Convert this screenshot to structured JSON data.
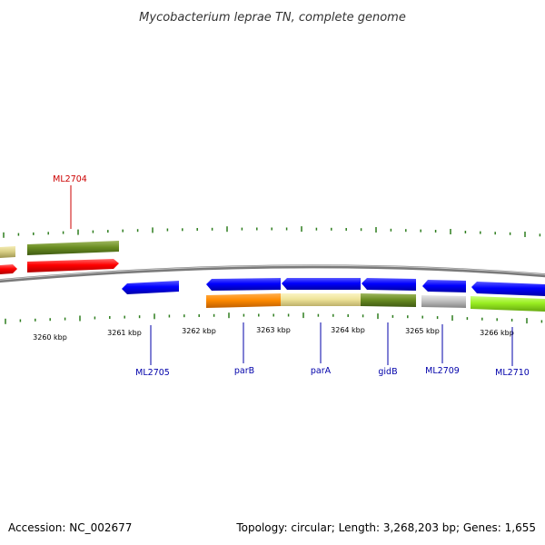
{
  "title": "Mycobacterium leprae TN, complete genome",
  "footer": {
    "accession": "Accession: NC_002677",
    "summary": "Topology: circular; Length: 3,268,203 bp; Genes: 1,655"
  },
  "colors": {
    "forward_label": "#cc0000",
    "reverse_label": "#0000aa",
    "tick": "#2e7d1e",
    "backbone": "#888888"
  },
  "kbp_labels": [
    "3260 kbp",
    "3261 kbp",
    "3262 kbp",
    "3263 kbp",
    "3264 kbp",
    "3265 kbp",
    "3266 kbp"
  ],
  "gene_labels": {
    "ml2704": "ML2704",
    "ml2705": "ML2705",
    "parB": "parB",
    "parA": "parA",
    "gidB": "gidB",
    "ml2709": "ML2709",
    "ml2710": "ML2710"
  }
}
